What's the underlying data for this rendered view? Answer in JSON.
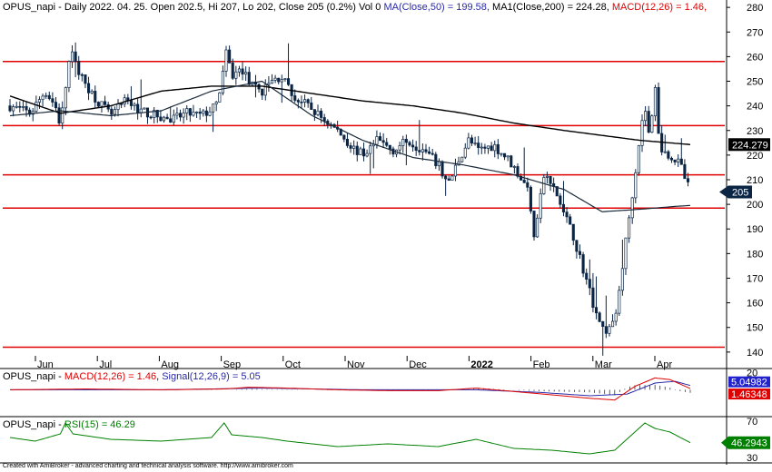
{
  "header": {
    "main_prefix": "OPUS_napi - Daily 2022. 04. 25. Open 202.5, Hi 207, Lo 202, Close 205 (0.2%) Vol 0 ",
    "main_ma50": "MA(Close,50) = 199.58, ",
    "main_ma200": "MA1(Close,200) = 224.28, ",
    "main_macd": "MACD(12,26) = 1.46,",
    "macd_prefix": "OPUS_napi - ",
    "macd_macd": "MACD(12,26) = 1.46",
    "macd_sep": ", ",
    "macd_signal": "Signal(12,26,9) = 5.05",
    "rsi_prefix": "OPUS_napi - ",
    "rsi_rsi": "RSI(15) = 46.29"
  },
  "footer": "Created with AmiBroker - advanced charting and technical analysis software. http://www.amibroker.com",
  "colors": {
    "candle": "#0b2545",
    "ma50": "#1a2a3a",
    "ma200": "#000000",
    "hline": "#e00000",
    "macd": "#e00000",
    "signal": "#2a2aa8",
    "hist": "#333333",
    "rsi": "#008000",
    "ma50_badge": "#0b2545",
    "macd_badge": "#e00000",
    "signal_badge": "#2222cc",
    "rsi_badge": "#008000"
  },
  "chart_data": [
    {
      "type": "candlestick",
      "panel": "price",
      "ylim": [
        137,
        283
      ],
      "y_ticks": [
        140,
        150,
        160,
        170,
        180,
        190,
        200,
        210,
        220,
        230,
        240,
        250,
        260,
        270,
        280
      ],
      "x_labels": [
        "Jun",
        "Jul",
        "Aug",
        "Sep",
        "Oct",
        "Nov",
        "Dec",
        "2022",
        "Feb",
        "Mar",
        "Apr"
      ],
      "horizontal_lines": [
        258,
        232,
        212,
        198.5,
        142
      ],
      "value_badges": [
        {
          "label": "224.279",
          "value": 224.28,
          "style": "ma200"
        },
        {
          "label": "205",
          "value": 205,
          "style": "close"
        }
      ],
      "close_path": [
        [
          0,
          240
        ],
        [
          8,
          237
        ],
        [
          14,
          246
        ],
        [
          18,
          240
        ],
        [
          20,
          232
        ],
        [
          24,
          262
        ],
        [
          28,
          252
        ],
        [
          34,
          243
        ],
        [
          40,
          236
        ],
        [
          46,
          242
        ],
        [
          52,
          238
        ],
        [
          58,
          236
        ],
        [
          64,
          234
        ],
        [
          70,
          237
        ],
        [
          76,
          236
        ],
        [
          82,
          240
        ],
        [
          86,
          262
        ],
        [
          88,
          252
        ],
        [
          92,
          255
        ],
        [
          96,
          248
        ],
        [
          100,
          246
        ],
        [
          104,
          250
        ],
        [
          108,
          252
        ],
        [
          112,
          244
        ],
        [
          118,
          240
        ],
        [
          124,
          235
        ],
        [
          130,
          230
        ],
        [
          136,
          223
        ],
        [
          140,
          220
        ],
        [
          146,
          226
        ],
        [
          152,
          222
        ],
        [
          158,
          226
        ],
        [
          164,
          222
        ],
        [
          170,
          216
        ],
        [
          174,
          208
        ],
        [
          178,
          218
        ],
        [
          182,
          226
        ],
        [
          186,
          222
        ],
        [
          192,
          224
        ],
        [
          198,
          218
        ],
        [
          202,
          212
        ],
        [
          206,
          205
        ],
        [
          208,
          188
        ],
        [
          212,
          212
        ],
        [
          216,
          206
        ],
        [
          220,
          196
        ],
        [
          224,
          186
        ],
        [
          228,
          172
        ],
        [
          232,
          158
        ],
        [
          236,
          148
        ],
        [
          240,
          152
        ],
        [
          244,
          182
        ],
        [
          248,
          212
        ],
        [
          250,
          228
        ],
        [
          252,
          240
        ],
        [
          254,
          225
        ],
        [
          256,
          250
        ],
        [
          258,
          222
        ],
        [
          262,
          220
        ],
        [
          266,
          216
        ],
        [
          270,
          205
        ]
      ],
      "ma200_path": [
        [
          0,
          244
        ],
        [
          20,
          237
        ],
        [
          40,
          240
        ],
        [
          60,
          246
        ],
        [
          80,
          248
        ],
        [
          100,
          248
        ],
        [
          120,
          245
        ],
        [
          140,
          242
        ],
        [
          160,
          240
        ],
        [
          180,
          237
        ],
        [
          200,
          233
        ],
        [
          220,
          230
        ],
        [
          235,
          228
        ],
        [
          250,
          226
        ],
        [
          270,
          224.28
        ]
      ],
      "ma50_path": [
        [
          0,
          236
        ],
        [
          20,
          238
        ],
        [
          40,
          236
        ],
        [
          60,
          238
        ],
        [
          80,
          246
        ],
        [
          100,
          250
        ],
        [
          120,
          236
        ],
        [
          140,
          226
        ],
        [
          160,
          219
        ],
        [
          180,
          216
        ],
        [
          200,
          212
        ],
        [
          220,
          206
        ],
        [
          235,
          197
        ],
        [
          250,
          198
        ],
        [
          262,
          199
        ],
        [
          270,
          199.58
        ]
      ]
    },
    {
      "type": "line",
      "panel": "macd",
      "ylim": [
        -22,
        24
      ],
      "y_ticks": [
        20
      ],
      "value_badges": [
        {
          "label": "5.04982",
          "value": 5.05,
          "style": "signal"
        },
        {
          "label": "1.46348",
          "value": 1.46,
          "style": "macd"
        }
      ],
      "macd_path": [
        [
          0,
          0
        ],
        [
          30,
          1
        ],
        [
          60,
          0
        ],
        [
          85,
          1
        ],
        [
          95,
          3
        ],
        [
          110,
          2
        ],
        [
          130,
          0
        ],
        [
          150,
          -1
        ],
        [
          170,
          -1
        ],
        [
          185,
          2
        ],
        [
          200,
          -2
        ],
        [
          215,
          -6
        ],
        [
          230,
          -10
        ],
        [
          240,
          -12
        ],
        [
          248,
          4
        ],
        [
          256,
          14
        ],
        [
          262,
          12
        ],
        [
          270,
          1.46
        ]
      ],
      "signal_path": [
        [
          0,
          0
        ],
        [
          60,
          0
        ],
        [
          100,
          2
        ],
        [
          140,
          0
        ],
        [
          185,
          0
        ],
        [
          210,
          -3
        ],
        [
          230,
          -7
        ],
        [
          245,
          -5
        ],
        [
          256,
          8
        ],
        [
          264,
          10
        ],
        [
          270,
          5.05
        ]
      ]
    },
    {
      "type": "line",
      "panel": "rsi",
      "ylim": [
        26,
        74
      ],
      "y_ticks": [
        30,
        70
      ],
      "value_badges": [
        {
          "label": "46.2943",
          "value": 46.29,
          "style": "rsi"
        }
      ],
      "rsi_path": [
        [
          0,
          52
        ],
        [
          10,
          48
        ],
        [
          20,
          56
        ],
        [
          22,
          68
        ],
        [
          25,
          56
        ],
        [
          40,
          50
        ],
        [
          60,
          48
        ],
        [
          80,
          52
        ],
        [
          85,
          68
        ],
        [
          88,
          55
        ],
        [
          100,
          52
        ],
        [
          110,
          48
        ],
        [
          130,
          42
        ],
        [
          150,
          45
        ],
        [
          170,
          42
        ],
        [
          185,
          50
        ],
        [
          200,
          40
        ],
        [
          215,
          38
        ],
        [
          230,
          34
        ],
        [
          240,
          38
        ],
        [
          248,
          58
        ],
        [
          252,
          68
        ],
        [
          256,
          62
        ],
        [
          262,
          58
        ],
        [
          270,
          46.29
        ]
      ]
    }
  ]
}
